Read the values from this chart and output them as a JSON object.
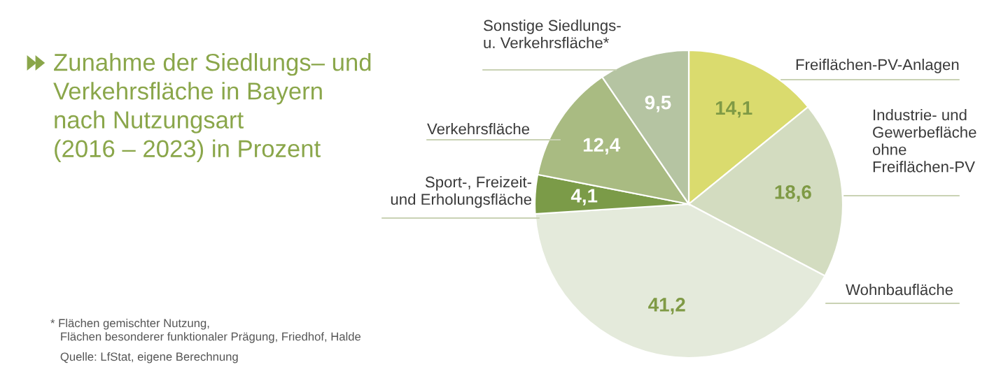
{
  "chart_data": {
    "type": "pie",
    "title": "Zunahme der Siedlungs– und\nVerkehrsfläche in Bayern\nnach Nutzungsart\n(2016 – 2023) in Prozent",
    "categories": [
      "Freiflächen-PV-Anlagen",
      "Industrie- und\nGewerbefläche\nohne\nFreiflächen-PV",
      "Wohnbaufläche",
      "Sport-, Freizeit-\nund Erholungsfläche",
      "Verkehrsfläche",
      "Sonstige Siedlungs-\nu. Verkehrsfläche*"
    ],
    "values": [
      14.1,
      18.6,
      41.2,
      4.1,
      12.4,
      9.5
    ],
    "value_labels": [
      "14,1",
      "18,6",
      "41,2",
      "4,1",
      "12,4",
      "9,5"
    ],
    "colors": [
      "#dadb6e",
      "#d3dcc0",
      "#e4eadb",
      "#7b9b48",
      "#a9bb82",
      "#b5c4a2"
    ],
    "annotations": [
      "* Flächen gemischter Nutzung,\n   Flächen besonderer funktionaler Prägung, Friedhof, Halde",
      "   Quelle: LfStat, eigene Berechnung"
    ]
  }
}
